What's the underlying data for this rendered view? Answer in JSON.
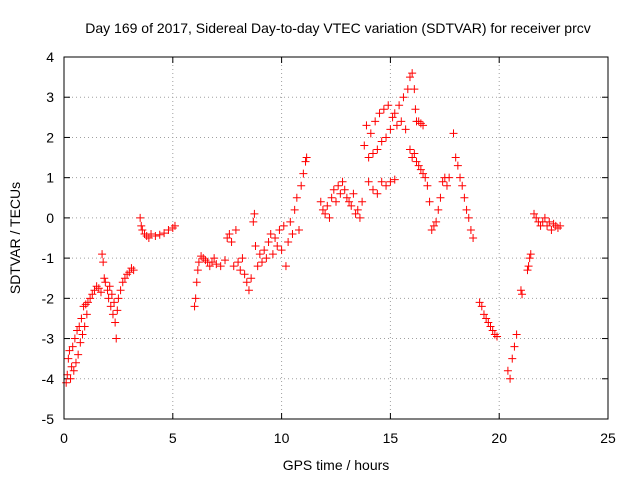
{
  "chart_data": {
    "type": "scatter",
    "title": "Day 169 of 2017, Sidereal Day-to-day VTEC variation (SDTVAR) for receiver prcv",
    "xlabel": "GPS time / hours",
    "ylabel": "SDTVAR / TECUs",
    "xlim": [
      0,
      25
    ],
    "ylim": [
      -5,
      4
    ],
    "xticks": [
      "0",
      "5",
      "10",
      "15",
      "20",
      "25"
    ],
    "yticks": [
      "-5",
      "-4",
      "-3",
      "-2",
      "-1",
      "0",
      "1",
      "2",
      "3",
      "4"
    ],
    "grid": true,
    "marker": "+",
    "color": "#ff0000",
    "series": [
      {
        "name": "SDTVAR",
        "points": [
          [
            0.1,
            -4.1
          ],
          [
            0.15,
            -3.9
          ],
          [
            0.2,
            -3.5
          ],
          [
            0.25,
            -3.3
          ],
          [
            0.3,
            -4.0
          ],
          [
            0.35,
            -3.7
          ],
          [
            0.4,
            -3.2
          ],
          [
            0.45,
            -3.8
          ],
          [
            0.5,
            -3.0
          ],
          [
            0.55,
            -3.6
          ],
          [
            0.6,
            -2.8
          ],
          [
            0.65,
            -3.4
          ],
          [
            0.7,
            -2.7
          ],
          [
            0.75,
            -3.1
          ],
          [
            0.8,
            -2.5
          ],
          [
            0.85,
            -2.9
          ],
          [
            0.9,
            -2.2
          ],
          [
            0.95,
            -2.7
          ],
          [
            1.0,
            -2.15
          ],
          [
            1.05,
            -2.4
          ],
          [
            1.1,
            -2.1
          ],
          [
            1.2,
            -2.0
          ],
          [
            1.3,
            -1.9
          ],
          [
            1.4,
            -1.8
          ],
          [
            1.5,
            -1.7
          ],
          [
            1.6,
            -1.75
          ],
          [
            1.7,
            -1.85
          ],
          [
            1.75,
            -0.9
          ],
          [
            1.8,
            -1.1
          ],
          [
            1.85,
            -1.5
          ],
          [
            1.9,
            -1.6
          ],
          [
            2.0,
            -1.8
          ],
          [
            2.05,
            -2.0
          ],
          [
            2.1,
            -1.7
          ],
          [
            2.15,
            -2.2
          ],
          [
            2.2,
            -1.9
          ],
          [
            2.25,
            -2.4
          ],
          [
            2.3,
            -2.1
          ],
          [
            2.35,
            -2.6
          ],
          [
            2.4,
            -3.0
          ],
          [
            2.45,
            -2.3
          ],
          [
            2.5,
            -2.0
          ],
          [
            2.6,
            -1.8
          ],
          [
            2.7,
            -1.6
          ],
          [
            2.8,
            -1.5
          ],
          [
            2.9,
            -1.4
          ],
          [
            3.0,
            -1.35
          ],
          [
            3.1,
            -1.25
          ],
          [
            3.2,
            -1.3
          ],
          [
            3.5,
            0.0
          ],
          [
            3.55,
            -0.2
          ],
          [
            3.6,
            -0.3
          ],
          [
            3.7,
            -0.4
          ],
          [
            3.8,
            -0.45
          ],
          [
            3.9,
            -0.5
          ],
          [
            4.0,
            -0.4
          ],
          [
            4.2,
            -0.45
          ],
          [
            4.4,
            -0.42
          ],
          [
            4.6,
            -0.38
          ],
          [
            4.8,
            -0.3
          ],
          [
            5.0,
            -0.25
          ],
          [
            5.1,
            -0.2
          ],
          [
            6.0,
            -2.2
          ],
          [
            6.05,
            -2.0
          ],
          [
            6.1,
            -1.6
          ],
          [
            6.15,
            -1.3
          ],
          [
            6.2,
            -1.1
          ],
          [
            6.3,
            -0.95
          ],
          [
            6.4,
            -1.0
          ],
          [
            6.5,
            -1.05
          ],
          [
            6.6,
            -1.1
          ],
          [
            6.7,
            -1.2
          ],
          [
            6.8,
            -1.1
          ],
          [
            6.9,
            -1.0
          ],
          [
            7.0,
            -1.15
          ],
          [
            7.2,
            -1.2
          ],
          [
            7.4,
            -1.05
          ],
          [
            7.5,
            -0.5
          ],
          [
            7.6,
            -0.4
          ],
          [
            7.7,
            -0.6
          ],
          [
            7.8,
            -1.2
          ],
          [
            7.9,
            -0.3
          ],
          [
            8.0,
            -1.1
          ],
          [
            8.1,
            -1.3
          ],
          [
            8.2,
            -1.0
          ],
          [
            8.3,
            -1.4
          ],
          [
            8.4,
            -1.6
          ],
          [
            8.5,
            -1.8
          ],
          [
            8.6,
            -1.5
          ],
          [
            8.7,
            -0.1
          ],
          [
            8.75,
            0.1
          ],
          [
            8.8,
            -0.7
          ],
          [
            8.9,
            -1.2
          ],
          [
            9.0,
            -0.9
          ],
          [
            9.1,
            -1.1
          ],
          [
            9.2,
            -0.8
          ],
          [
            9.3,
            -1.0
          ],
          [
            9.4,
            -0.6
          ],
          [
            9.5,
            -0.4
          ],
          [
            9.6,
            -0.9
          ],
          [
            9.7,
            -0.5
          ],
          [
            9.8,
            -0.7
          ],
          [
            9.9,
            -0.3
          ],
          [
            10.0,
            -0.8
          ],
          [
            10.1,
            -0.2
          ],
          [
            10.2,
            -1.2
          ],
          [
            10.3,
            -0.6
          ],
          [
            10.4,
            -0.1
          ],
          [
            10.5,
            -0.4
          ],
          [
            10.6,
            0.2
          ],
          [
            10.7,
            0.5
          ],
          [
            10.8,
            -0.3
          ],
          [
            10.9,
            0.8
          ],
          [
            11.0,
            1.1
          ],
          [
            11.1,
            1.4
          ],
          [
            11.15,
            1.5
          ],
          [
            11.8,
            0.4
          ],
          [
            11.9,
            0.2
          ],
          [
            12.0,
            0.1
          ],
          [
            12.1,
            0.3
          ],
          [
            12.2,
            0.0
          ],
          [
            12.3,
            0.5
          ],
          [
            12.4,
            0.7
          ],
          [
            12.5,
            0.4
          ],
          [
            12.6,
            0.8
          ],
          [
            12.7,
            0.6
          ],
          [
            12.8,
            0.9
          ],
          [
            12.9,
            0.7
          ],
          [
            13.0,
            0.5
          ],
          [
            13.1,
            0.4
          ],
          [
            13.2,
            0.3
          ],
          [
            13.3,
            0.6
          ],
          [
            13.4,
            0.1
          ],
          [
            13.5,
            0.2
          ],
          [
            13.6,
            0.0
          ],
          [
            13.7,
            0.4
          ],
          [
            13.8,
            1.8
          ],
          [
            13.9,
            2.3
          ],
          [
            14.0,
            1.5
          ],
          [
            14.1,
            2.1
          ],
          [
            14.2,
            1.6
          ],
          [
            14.3,
            2.4
          ],
          [
            14.4,
            1.7
          ],
          [
            14.5,
            2.6
          ],
          [
            14.6,
            1.9
          ],
          [
            14.7,
            2.7
          ],
          [
            14.8,
            2.0
          ],
          [
            14.9,
            2.8
          ],
          [
            15.0,
            2.2
          ],
          [
            15.1,
            2.5
          ],
          [
            15.2,
            2.6
          ],
          [
            15.3,
            2.3
          ],
          [
            15.4,
            2.8
          ],
          [
            15.5,
            2.4
          ],
          [
            15.6,
            3.0
          ],
          [
            15.7,
            2.2
          ],
          [
            15.8,
            3.2
          ],
          [
            15.9,
            3.5
          ],
          [
            16.0,
            3.6
          ],
          [
            16.1,
            3.2
          ],
          [
            16.15,
            2.7
          ],
          [
            16.2,
            2.4
          ],
          [
            16.3,
            2.4
          ],
          [
            16.4,
            2.35
          ],
          [
            16.5,
            2.3
          ],
          [
            14.0,
            0.9
          ],
          [
            14.2,
            0.7
          ],
          [
            14.4,
            0.6
          ],
          [
            14.6,
            0.9
          ],
          [
            14.8,
            0.8
          ],
          [
            15.0,
            0.9
          ],
          [
            15.2,
            0.95
          ],
          [
            15.9,
            1.7
          ],
          [
            16.0,
            1.5
          ],
          [
            16.1,
            1.6
          ],
          [
            16.2,
            1.4
          ],
          [
            16.3,
            1.3
          ],
          [
            16.4,
            1.2
          ],
          [
            16.5,
            1.1
          ],
          [
            16.6,
            1.0
          ],
          [
            16.7,
            0.8
          ],
          [
            16.8,
            0.4
          ],
          [
            16.9,
            -0.3
          ],
          [
            17.0,
            -0.2
          ],
          [
            17.1,
            -0.1
          ],
          [
            17.2,
            0.2
          ],
          [
            17.3,
            0.5
          ],
          [
            17.4,
            0.9
          ],
          [
            17.5,
            1.0
          ],
          [
            17.6,
            0.8
          ],
          [
            17.7,
            1.0
          ],
          [
            17.9,
            2.1
          ],
          [
            18.0,
            1.5
          ],
          [
            18.1,
            1.3
          ],
          [
            18.2,
            1.0
          ],
          [
            18.3,
            0.8
          ],
          [
            18.4,
            0.5
          ],
          [
            18.5,
            0.2
          ],
          [
            18.6,
            0.0
          ],
          [
            18.7,
            -0.3
          ],
          [
            18.8,
            -0.5
          ],
          [
            19.1,
            -2.1
          ],
          [
            19.2,
            -2.2
          ],
          [
            19.3,
            -2.4
          ],
          [
            19.4,
            -2.5
          ],
          [
            19.5,
            -2.6
          ],
          [
            19.6,
            -2.7
          ],
          [
            19.7,
            -2.8
          ],
          [
            19.8,
            -2.9
          ],
          [
            19.9,
            -2.95
          ],
          [
            20.4,
            -3.8
          ],
          [
            20.5,
            -4.0
          ],
          [
            20.6,
            -3.5
          ],
          [
            20.7,
            -3.2
          ],
          [
            20.8,
            -2.9
          ],
          [
            21.0,
            -1.8
          ],
          [
            21.05,
            -1.9
          ],
          [
            21.3,
            -1.3
          ],
          [
            21.35,
            -1.2
          ],
          [
            21.4,
            -1.0
          ],
          [
            21.45,
            -0.9
          ],
          [
            21.6,
            0.1
          ],
          [
            21.7,
            0.0
          ],
          [
            21.8,
            -0.1
          ],
          [
            21.9,
            -0.2
          ],
          [
            22.0,
            -0.1
          ],
          [
            22.1,
            0.0
          ],
          [
            22.2,
            -0.2
          ],
          [
            22.3,
            -0.1
          ],
          [
            22.4,
            -0.3
          ],
          [
            22.5,
            -0.15
          ],
          [
            22.6,
            -0.2
          ],
          [
            22.7,
            -0.25
          ],
          [
            22.8,
            -0.2
          ]
        ]
      }
    ]
  }
}
